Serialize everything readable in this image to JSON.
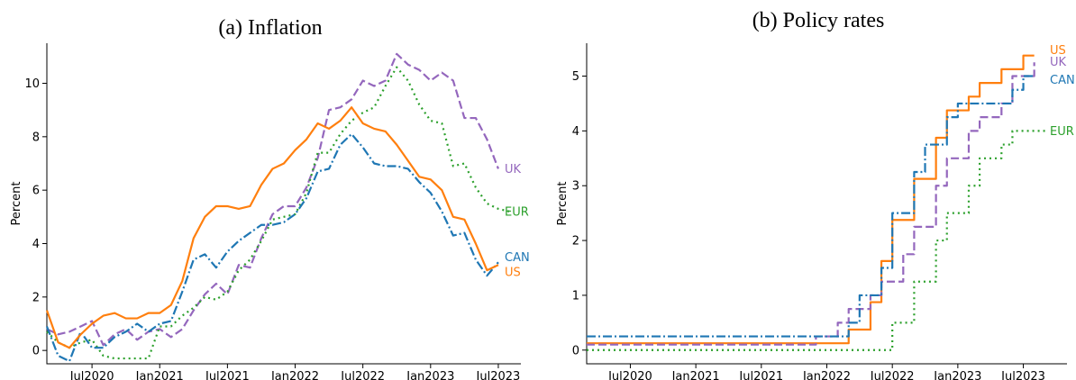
{
  "chart_data": [
    {
      "type": "line",
      "title": "(a) Inflation",
      "ylabel": "Percent",
      "xlabel": "",
      "x_range": [
        "2020-03",
        "2023-09"
      ],
      "ylim": [
        -0.5,
        11.5
      ],
      "x_ticks": [
        {
          "date": "2020-07",
          "label": "Jul2020"
        },
        {
          "date": "2021-01",
          "label": "Jan2021"
        },
        {
          "date": "2021-07",
          "label": "Jul2021"
        },
        {
          "date": "2022-01",
          "label": "Jan2022"
        },
        {
          "date": "2022-07",
          "label": "Jul2022"
        },
        {
          "date": "2023-01",
          "label": "Jan2023"
        },
        {
          "date": "2023-07",
          "label": "Jul2023"
        }
      ],
      "y_ticks": [
        0,
        2,
        4,
        6,
        8,
        10
      ],
      "step": false,
      "series": [
        {
          "name": "UK",
          "color": "#9467bd",
          "dash": "dashed",
          "label_offset": 0,
          "x": [
            "2020-03",
            "2020-04",
            "2020-05",
            "2020-06",
            "2020-07",
            "2020-08",
            "2020-09",
            "2020-10",
            "2020-11",
            "2020-12",
            "2021-01",
            "2021-02",
            "2021-03",
            "2021-04",
            "2021-05",
            "2021-06",
            "2021-07",
            "2021-08",
            "2021-09",
            "2021-10",
            "2021-11",
            "2021-12",
            "2022-01",
            "2022-02",
            "2022-03",
            "2022-04",
            "2022-05",
            "2022-06",
            "2022-07",
            "2022-08",
            "2022-09",
            "2022-10",
            "2022-11",
            "2022-12",
            "2023-01",
            "2023-02",
            "2023-03",
            "2023-04",
            "2023-05",
            "2023-06",
            "2023-07"
          ],
          "y": [
            0.8,
            0.6,
            0.7,
            0.9,
            1.1,
            0.2,
            0.6,
            0.8,
            0.4,
            0.7,
            0.8,
            0.5,
            0.8,
            1.5,
            2.1,
            2.5,
            2.1,
            3.2,
            3.1,
            4.2,
            5.1,
            5.4,
            5.4,
            6.1,
            7.2,
            9.0,
            9.1,
            9.4,
            10.1,
            9.9,
            10.1,
            11.1,
            10.7,
            10.5,
            10.1,
            10.4,
            10.1,
            8.7,
            8.7,
            7.9,
            6.8
          ]
        },
        {
          "name": "EUR",
          "color": "#2ca02c",
          "dash": "dotted",
          "label_offset": 0,
          "x": [
            "2020-03",
            "2020-04",
            "2020-05",
            "2020-06",
            "2020-07",
            "2020-08",
            "2020-09",
            "2020-10",
            "2020-11",
            "2020-12",
            "2021-01",
            "2021-02",
            "2021-03",
            "2021-04",
            "2021-05",
            "2021-06",
            "2021-07",
            "2021-08",
            "2021-09",
            "2021-10",
            "2021-11",
            "2021-12",
            "2022-01",
            "2022-02",
            "2022-03",
            "2022-04",
            "2022-05",
            "2022-06",
            "2022-07",
            "2022-08",
            "2022-09",
            "2022-10",
            "2022-11",
            "2022-12",
            "2023-01",
            "2023-02",
            "2023-03",
            "2023-04",
            "2023-05",
            "2023-06",
            "2023-07",
            "2023-08"
          ],
          "y": [
            0.7,
            0.3,
            0.1,
            0.3,
            0.4,
            -0.2,
            -0.3,
            -0.3,
            -0.3,
            -0.3,
            0.9,
            0.9,
            1.3,
            1.6,
            2.0,
            1.9,
            2.2,
            3.0,
            3.4,
            4.1,
            4.9,
            5.0,
            5.1,
            5.9,
            7.4,
            7.4,
            8.1,
            8.6,
            8.9,
            9.1,
            9.9,
            10.6,
            10.1,
            9.2,
            8.6,
            8.5,
            6.9,
            7.0,
            6.1,
            5.5,
            5.3,
            5.2
          ]
        },
        {
          "name": "CAN",
          "color": "#1f77b4",
          "dash": "dashdot",
          "label_offset": -6,
          "x": [
            "2020-03",
            "2020-04",
            "2020-05",
            "2020-06",
            "2020-07",
            "2020-08",
            "2020-09",
            "2020-10",
            "2020-11",
            "2020-12",
            "2021-01",
            "2021-02",
            "2021-03",
            "2021-04",
            "2021-05",
            "2021-06",
            "2021-07",
            "2021-08",
            "2021-09",
            "2021-10",
            "2021-11",
            "2021-12",
            "2022-01",
            "2022-02",
            "2022-03",
            "2022-04",
            "2022-05",
            "2022-06",
            "2022-07",
            "2022-08",
            "2022-09",
            "2022-10",
            "2022-11",
            "2022-12",
            "2023-01",
            "2023-02",
            "2023-03",
            "2023-04",
            "2023-05",
            "2023-06",
            "2023-07"
          ],
          "y": [
            0.9,
            -0.2,
            -0.4,
            0.7,
            0.1,
            0.1,
            0.5,
            0.7,
            1.0,
            0.7,
            1.0,
            1.1,
            2.2,
            3.4,
            3.6,
            3.1,
            3.7,
            4.1,
            4.4,
            4.7,
            4.7,
            4.8,
            5.1,
            5.7,
            6.7,
            6.8,
            7.7,
            8.1,
            7.6,
            7.0,
            6.9,
            6.9,
            6.8,
            6.3,
            5.9,
            5.2,
            4.3,
            4.4,
            3.4,
            2.8,
            3.3
          ]
        },
        {
          "name": "US",
          "color": "#ff7f0e",
          "dash": "solid",
          "label_offset": 8,
          "x": [
            "2020-03",
            "2020-04",
            "2020-05",
            "2020-06",
            "2020-07",
            "2020-08",
            "2020-09",
            "2020-10",
            "2020-11",
            "2020-12",
            "2021-01",
            "2021-02",
            "2021-03",
            "2021-04",
            "2021-05",
            "2021-06",
            "2021-07",
            "2021-08",
            "2021-09",
            "2021-10",
            "2021-11",
            "2021-12",
            "2022-01",
            "2022-02",
            "2022-03",
            "2022-04",
            "2022-05",
            "2022-06",
            "2022-07",
            "2022-08",
            "2022-09",
            "2022-10",
            "2022-11",
            "2022-12",
            "2023-01",
            "2023-02",
            "2023-03",
            "2023-04",
            "2023-05",
            "2023-06",
            "2023-07"
          ],
          "y": [
            1.5,
            0.3,
            0.1,
            0.6,
            1.0,
            1.3,
            1.4,
            1.2,
            1.2,
            1.4,
            1.4,
            1.7,
            2.6,
            4.2,
            5.0,
            5.4,
            5.4,
            5.3,
            5.4,
            6.2,
            6.8,
            7.0,
            7.5,
            7.9,
            8.5,
            8.3,
            8.6,
            9.1,
            8.5,
            8.3,
            8.2,
            7.7,
            7.1,
            6.5,
            6.4,
            6.0,
            5.0,
            4.9,
            4.0,
            3.0,
            3.2
          ]
        }
      ]
    },
    {
      "type": "line",
      "title": "(b) Policy rates",
      "ylabel": "Percent",
      "xlabel": "",
      "x_range": [
        "2020-03",
        "2023-11"
      ],
      "ylim": [
        -0.25,
        5.6
      ],
      "x_ticks": [
        {
          "date": "2020-07",
          "label": "Jul2020"
        },
        {
          "date": "2021-01",
          "label": "Jan2021"
        },
        {
          "date": "2021-07",
          "label": "Jul2021"
        },
        {
          "date": "2022-01",
          "label": "Jan2022"
        },
        {
          "date": "2022-07",
          "label": "Jul2022"
        },
        {
          "date": "2023-01",
          "label": "Jan2023"
        },
        {
          "date": "2023-07",
          "label": "Jul2023"
        }
      ],
      "y_ticks": [
        0,
        1,
        2,
        3,
        4,
        5
      ],
      "step": true,
      "series": [
        {
          "name": "US",
          "color": "#ff7f0e",
          "dash": "solid",
          "label_offset": -6,
          "x": [
            "2020-03",
            "2022-03",
            "2022-05",
            "2022-06",
            "2022-07",
            "2022-09",
            "2022-11",
            "2022-12",
            "2023-02",
            "2023-03",
            "2023-05",
            "2023-07",
            "2023-08"
          ],
          "y": [
            0.125,
            0.375,
            0.875,
            1.625,
            2.375,
            3.125,
            3.875,
            4.375,
            4.625,
            4.875,
            5.125,
            5.375,
            5.375
          ]
        },
        {
          "name": "UK",
          "color": "#9467bd",
          "dash": "dashed",
          "label_offset": -1,
          "x": [
            "2020-03",
            "2021-12",
            "2022-02",
            "2022-03",
            "2022-05",
            "2022-06",
            "2022-08",
            "2022-09",
            "2022-11",
            "2022-12",
            "2023-02",
            "2023-03",
            "2023-05",
            "2023-06",
            "2023-08"
          ],
          "y": [
            0.1,
            0.25,
            0.5,
            0.75,
            1.0,
            1.25,
            1.75,
            2.25,
            3.0,
            3.5,
            4.0,
            4.25,
            4.5,
            5.0,
            5.25
          ]
        },
        {
          "name": "CAN",
          "color": "#1f77b4",
          "dash": "dashdot",
          "label_offset": 4,
          "x": [
            "2020-03",
            "2022-03",
            "2022-04",
            "2022-06",
            "2022-07",
            "2022-09",
            "2022-10",
            "2022-12",
            "2023-01",
            "2023-06",
            "2023-07",
            "2023-08"
          ],
          "y": [
            0.25,
            0.5,
            1.0,
            1.5,
            2.5,
            3.25,
            3.75,
            4.25,
            4.5,
            4.75,
            5.0,
            5.0
          ]
        },
        {
          "name": "EUR",
          "color": "#2ca02c",
          "dash": "dotted",
          "label_offset": 0,
          "x": [
            "2020-03",
            "2022-07",
            "2022-09",
            "2022-10",
            "2022-11",
            "2022-12",
            "2023-02",
            "2023-03",
            "2023-05",
            "2023-06",
            "2023-08",
            "2023-09"
          ],
          "y": [
            0.0,
            0.5,
            1.25,
            1.25,
            2.0,
            2.5,
            3.0,
            3.5,
            3.75,
            4.0,
            4.0,
            4.0
          ]
        }
      ]
    }
  ]
}
